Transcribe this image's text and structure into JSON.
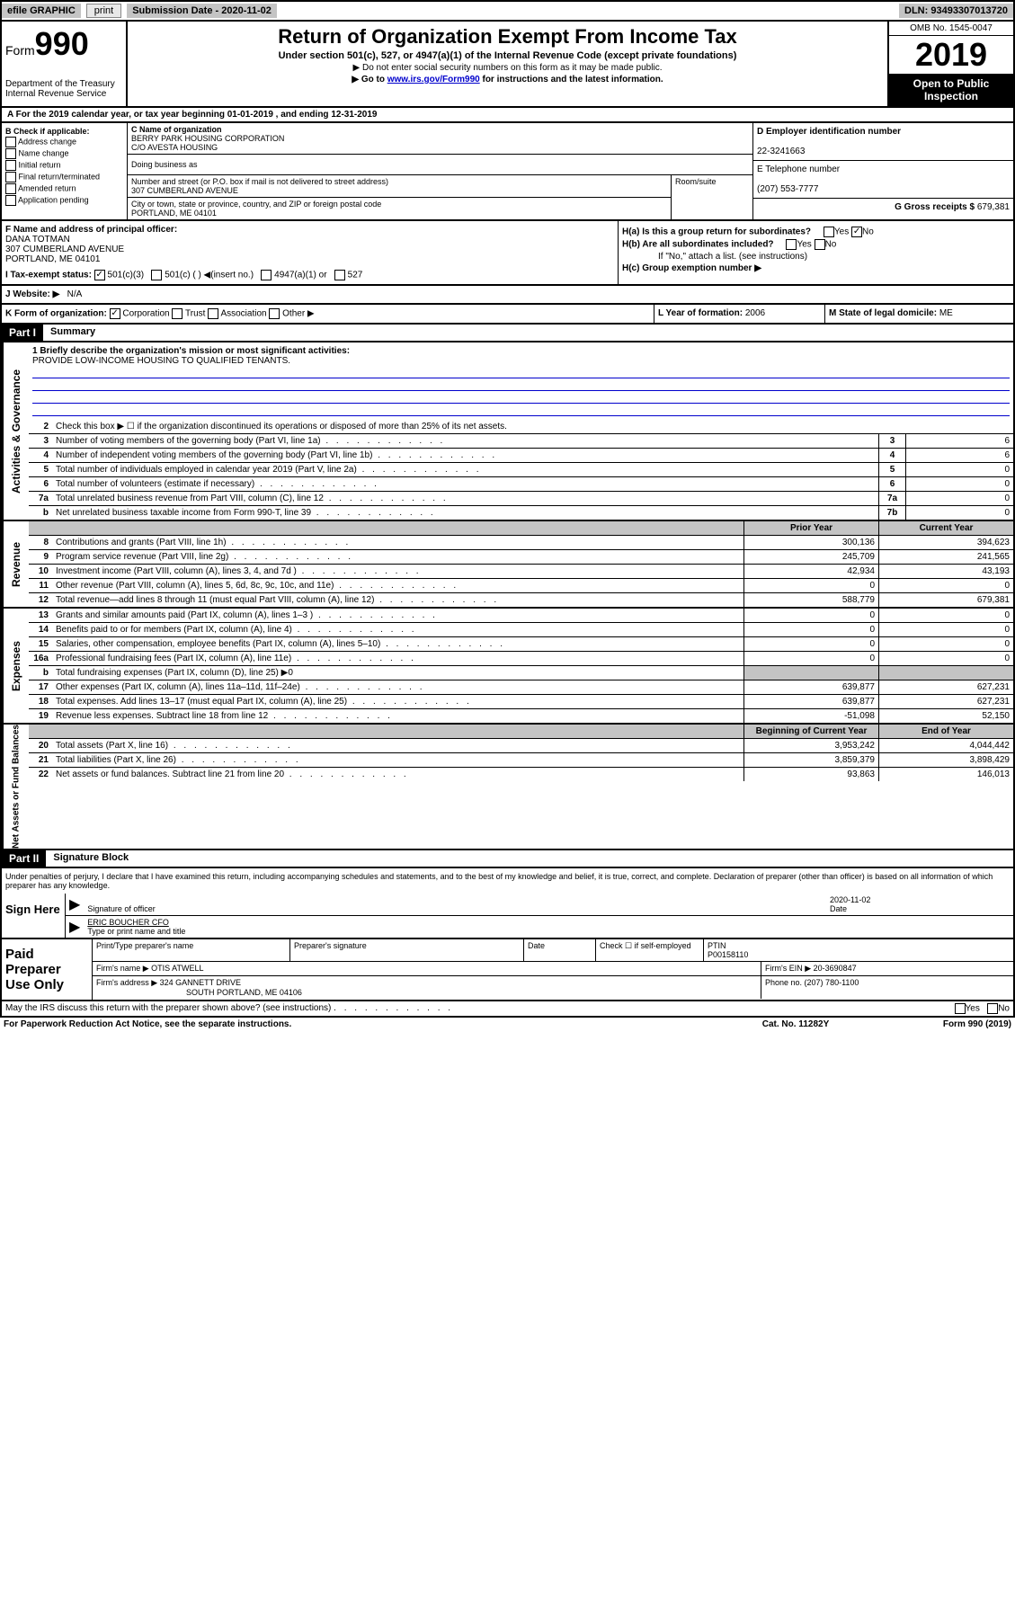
{
  "top": {
    "efile": "efile GRAPHIC",
    "print": "print",
    "sub_date_label": "Submission Date - 2020-11-02",
    "dln": "DLN: 93493307013720"
  },
  "header": {
    "form_prefix": "Form",
    "form_num": "990",
    "title": "Return of Organization Exempt From Income Tax",
    "subtitle": "Under section 501(c), 527, or 4947(a)(1) of the Internal Revenue Code (except private foundations)",
    "note1": "▶ Do not enter social security numbers on this form as it may be made public.",
    "note2_pre": "▶ Go to ",
    "note2_link": "www.irs.gov/Form990",
    "note2_post": " for instructions and the latest information.",
    "dept": "Department of the Treasury\nInternal Revenue Service",
    "omb": "OMB No. 1545-0047",
    "year": "2019",
    "open": "Open to Public Inspection"
  },
  "row_a": "A For the 2019 calendar year, or tax year beginning 01-01-2019   , and ending 12-31-2019",
  "section_b": {
    "label": "B Check if applicable:",
    "items": [
      "Address change",
      "Name change",
      "Initial return",
      "Final return/terminated",
      "Amended return",
      "Application pending"
    ]
  },
  "section_c": {
    "name_label": "C Name of organization",
    "name": "BERRY PARK HOUSING CORPORATION",
    "co": "C/O AVESTA HOUSING",
    "dba_label": "Doing business as",
    "addr_label": "Number and street (or P.O. box if mail is not delivered to street address)",
    "addr": "307 CUMBERLAND AVENUE",
    "room_label": "Room/suite",
    "city_label": "City or town, state or province, country, and ZIP or foreign postal code",
    "city": "PORTLAND, ME  04101"
  },
  "section_d": {
    "ein_label": "D Employer identification number",
    "ein": "22-3241663",
    "tel_label": "E Telephone number",
    "tel": "(207) 553-7777",
    "gross_label": "G Gross receipts $ ",
    "gross": "679,381"
  },
  "section_f": {
    "label": "F Name and address of principal officer:",
    "name": "DANA TOTMAN",
    "addr": "307 CUMBERLAND AVENUE",
    "city": "PORTLAND, ME  04101"
  },
  "section_h": {
    "a": "H(a)  Is this a group return for subordinates?",
    "b": "H(b)  Are all subordinates included?",
    "b_note": "If \"No,\" attach a list. (see instructions)",
    "c": "H(c)  Group exemption number ▶",
    "yes": "Yes",
    "no": "No"
  },
  "row_i": {
    "label": "I   Tax-exempt status:",
    "opts": [
      "501(c)(3)",
      "501(c) (   ) ◀(insert no.)",
      "4947(a)(1) or",
      "527"
    ]
  },
  "row_j": {
    "label": "J   Website: ▶",
    "val": "N/A"
  },
  "row_k": {
    "label": "K Form of organization:",
    "opts": [
      "Corporation",
      "Trust",
      "Association",
      "Other ▶"
    ],
    "l_label": "L Year of formation: ",
    "l_val": "2006",
    "m_label": "M State of legal domicile: ",
    "m_val": "ME"
  },
  "part1": {
    "header": "Part I",
    "title": "Summary",
    "line1_label": "1  Briefly describe the organization's mission or most significant activities:",
    "line1_text": "PROVIDE LOW-INCOME HOUSING TO QUALIFIED TENANTS.",
    "line2": "Check this box ▶ ☐ if the organization discontinued its operations or disposed of more than 25% of its net assets."
  },
  "side_labels": {
    "gov": "Activities & Governance",
    "rev": "Revenue",
    "exp": "Expenses",
    "net": "Net Assets or Fund Balances"
  },
  "gov_lines": [
    {
      "n": "3",
      "t": "Number of voting members of the governing body (Part VI, line 1a)",
      "b": "3",
      "v": "6"
    },
    {
      "n": "4",
      "t": "Number of independent voting members of the governing body (Part VI, line 1b)",
      "b": "4",
      "v": "6"
    },
    {
      "n": "5",
      "t": "Total number of individuals employed in calendar year 2019 (Part V, line 2a)",
      "b": "5",
      "v": "0"
    },
    {
      "n": "6",
      "t": "Total number of volunteers (estimate if necessary)",
      "b": "6",
      "v": "0"
    },
    {
      "n": "7a",
      "t": "Total unrelated business revenue from Part VIII, column (C), line 12",
      "b": "7a",
      "v": "0"
    },
    {
      "n": "b",
      "t": "Net unrelated business taxable income from Form 990-T, line 39",
      "b": "7b",
      "v": "0"
    }
  ],
  "col_headers": {
    "prior": "Prior Year",
    "current": "Current Year",
    "beg": "Beginning of Current Year",
    "end": "End of Year"
  },
  "rev_lines": [
    {
      "n": "8",
      "t": "Contributions and grants (Part VIII, line 1h)",
      "p": "300,136",
      "c": "394,623"
    },
    {
      "n": "9",
      "t": "Program service revenue (Part VIII, line 2g)",
      "p": "245,709",
      "c": "241,565"
    },
    {
      "n": "10",
      "t": "Investment income (Part VIII, column (A), lines 3, 4, and 7d )",
      "p": "42,934",
      "c": "43,193"
    },
    {
      "n": "11",
      "t": "Other revenue (Part VIII, column (A), lines 5, 6d, 8c, 9c, 10c, and 11e)",
      "p": "0",
      "c": "0"
    },
    {
      "n": "12",
      "t": "Total revenue—add lines 8 through 11 (must equal Part VIII, column (A), line 12)",
      "p": "588,779",
      "c": "679,381"
    }
  ],
  "exp_lines": [
    {
      "n": "13",
      "t": "Grants and similar amounts paid (Part IX, column (A), lines 1–3 )",
      "p": "0",
      "c": "0"
    },
    {
      "n": "14",
      "t": "Benefits paid to or for members (Part IX, column (A), line 4)",
      "p": "0",
      "c": "0"
    },
    {
      "n": "15",
      "t": "Salaries, other compensation, employee benefits (Part IX, column (A), lines 5–10)",
      "p": "0",
      "c": "0"
    },
    {
      "n": "16a",
      "t": "Professional fundraising fees (Part IX, column (A), line 11e)",
      "p": "0",
      "c": "0"
    },
    {
      "n": "b",
      "t": "Total fundraising expenses (Part IX, column (D), line 25) ▶0",
      "p": "",
      "c": "",
      "shaded": true
    },
    {
      "n": "17",
      "t": "Other expenses (Part IX, column (A), lines 11a–11d, 11f–24e)",
      "p": "639,877",
      "c": "627,231"
    },
    {
      "n": "18",
      "t": "Total expenses. Add lines 13–17 (must equal Part IX, column (A), line 25)",
      "p": "639,877",
      "c": "627,231"
    },
    {
      "n": "19",
      "t": "Revenue less expenses. Subtract line 18 from line 12",
      "p": "-51,098",
      "c": "52,150"
    }
  ],
  "net_lines": [
    {
      "n": "20",
      "t": "Total assets (Part X, line 16)",
      "p": "3,953,242",
      "c": "4,044,442"
    },
    {
      "n": "21",
      "t": "Total liabilities (Part X, line 26)",
      "p": "3,859,379",
      "c": "3,898,429"
    },
    {
      "n": "22",
      "t": "Net assets or fund balances. Subtract line 21 from line 20",
      "p": "93,863",
      "c": "146,013"
    }
  ],
  "part2": {
    "header": "Part II",
    "title": "Signature Block",
    "text": "Under penalties of perjury, I declare that I have examined this return, including accompanying schedules and statements, and to the best of my knowledge and belief, it is true, correct, and complete. Declaration of preparer (other than officer) is based on all information of which preparer has any knowledge."
  },
  "sign": {
    "label": "Sign Here",
    "sig_label": "Signature of officer",
    "date": "2020-11-02",
    "date_label": "Date",
    "name": "ERIC BOUCHER CFO",
    "name_label": "Type or print name and title"
  },
  "prep": {
    "label": "Paid Preparer Use Only",
    "col1": "Print/Type preparer's name",
    "col2": "Preparer's signature",
    "col3": "Date",
    "col4": "Check ☐ if self-employed",
    "col5_label": "PTIN",
    "col5": "P00158110",
    "firm_label": "Firm's name    ▶ ",
    "firm": "OTIS ATWELL",
    "ein_label": "Firm's EIN ▶ ",
    "ein": "20-3690847",
    "addr_label": "Firm's address ▶ ",
    "addr1": "324 GANNETT DRIVE",
    "addr2": "SOUTH PORTLAND, ME  04106",
    "phone_label": "Phone no. ",
    "phone": "(207) 780-1100"
  },
  "footer": {
    "q": "May the IRS discuss this return with the preparer shown above? (see instructions)",
    "yes": "Yes",
    "no": "No",
    "notice": "For Paperwork Reduction Act Notice, see the separate instructions.",
    "cat": "Cat. No. 11282Y",
    "form": "Form 990 (2019)"
  }
}
